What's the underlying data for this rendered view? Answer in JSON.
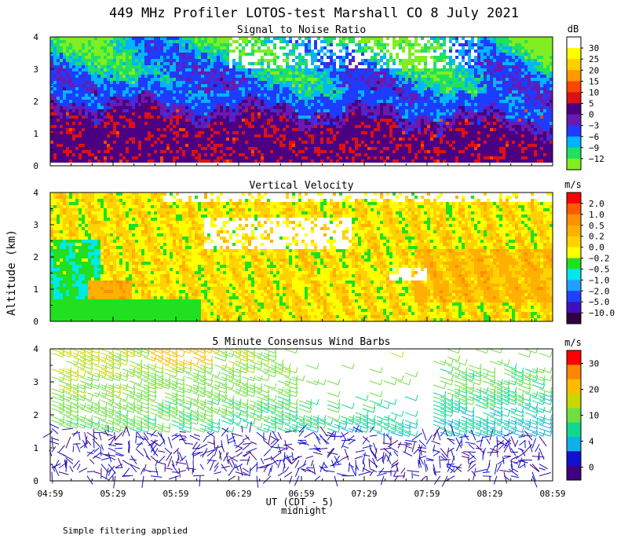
{
  "title": "449 MHz Profiler LOTOS-test Marshall CO  8 July 2021",
  "ylabel": "Altitude (km)",
  "xlabel": "UT (CDT - 5)",
  "midnight_label": "midnight",
  "footer": "Simple filtering applied",
  "x_ticks": [
    "04:59",
    "05:29",
    "05:59",
    "06:29",
    "06:59",
    "07:29",
    "07:59",
    "08:29",
    "08:59"
  ],
  "y_ticks": [
    "0",
    "1",
    "2",
    "3",
    "4"
  ],
  "chart_data": [
    {
      "type": "heatmap",
      "title": "Signal to Noise Ratio",
      "unit": "dB",
      "xlim": [
        "04:59",
        "08:59"
      ],
      "ylim": [
        0,
        4
      ],
      "colorbar_labels": [
        "30",
        "25",
        "20",
        "15",
        "10",
        "5",
        "0",
        "−3",
        "−6",
        "−9",
        "−12"
      ],
      "colorbar_colors": [
        "#ffffff",
        "#ffff00",
        "#ffd000",
        "#ff9900",
        "#ff4400",
        "#dd1111",
        "#4b0082",
        "#6a1ab0",
        "#1e3cff",
        "#00b4ff",
        "#20e060",
        "#80ee20"
      ]
    },
    {
      "type": "heatmap",
      "title": "Vertical Velocity",
      "unit": "m/s",
      "xlim": [
        "04:59",
        "08:59"
      ],
      "ylim": [
        0,
        4
      ],
      "colorbar_labels": [
        "2.0",
        "1.0",
        "0.5",
        "0.2",
        "0.0",
        "−0.2",
        "−0.5",
        "−1.0",
        "−2.0",
        "−5.0",
        "−10.0"
      ],
      "colorbar_colors": [
        "#ff0000",
        "#ff5a00",
        "#ff9000",
        "#ffb000",
        "#ffd200",
        "#ffff00",
        "#20e020",
        "#00e8e8",
        "#20a0ff",
        "#2040ff",
        "#4010c0",
        "#300040"
      ]
    },
    {
      "type": "scatter",
      "title": "5 Minute Consensus Wind Barbs",
      "unit": "m/s",
      "xlim": [
        "04:59",
        "08:59"
      ],
      "ylim": [
        0,
        4
      ],
      "colorbar_labels": [
        "30",
        "20",
        "10",
        "4",
        "0"
      ],
      "colorbar_colors": [
        "#ff0000",
        "#ff8800",
        "#ffbb00",
        "#c8d800",
        "#70e040",
        "#10d890",
        "#10b0e8",
        "#1010d0",
        "#400080"
      ]
    }
  ]
}
